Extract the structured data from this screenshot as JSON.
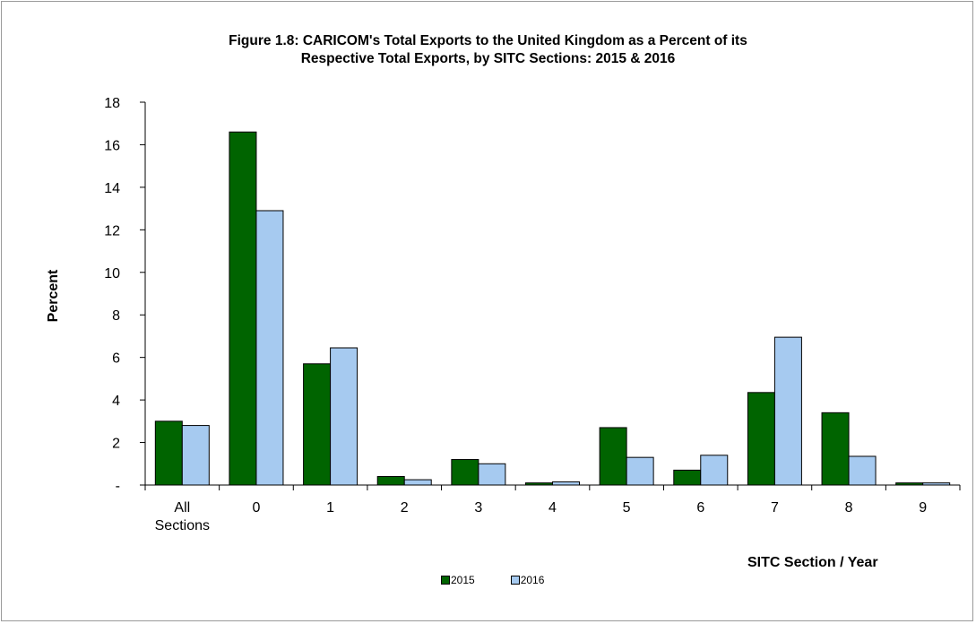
{
  "chart_data": {
    "type": "bar",
    "title_line1": "Figure 1.8: CARICOM's  Total Exports to the United Kingdom as a Percent of its",
    "title_line2": "Respective Total Exports,  by SITC Sections: 2015 & 2016",
    "xlabel": "SITC Section / Year",
    "ylabel": "Percent",
    "categories": [
      "All Sections",
      "0",
      "1",
      "2",
      "3",
      "4",
      "5",
      "6",
      "7",
      "8",
      "9"
    ],
    "y_ticks": [
      "-",
      "2",
      "4",
      "6",
      "8",
      "10",
      "12",
      "14",
      "16",
      "18"
    ],
    "ylim": [
      0,
      18
    ],
    "series": [
      {
        "name": "2015",
        "color": "#006400",
        "values": [
          3.0,
          16.6,
          5.7,
          0.4,
          1.2,
          0.1,
          2.7,
          0.7,
          4.35,
          3.4,
          0.1
        ]
      },
      {
        "name": "2016",
        "color": "#a6caf0",
        "values": [
          2.8,
          12.9,
          6.45,
          0.25,
          1.0,
          0.15,
          1.3,
          1.4,
          6.95,
          1.35,
          0.1
        ]
      }
    ],
    "legend_position": "bottom-center",
    "grid": false
  }
}
